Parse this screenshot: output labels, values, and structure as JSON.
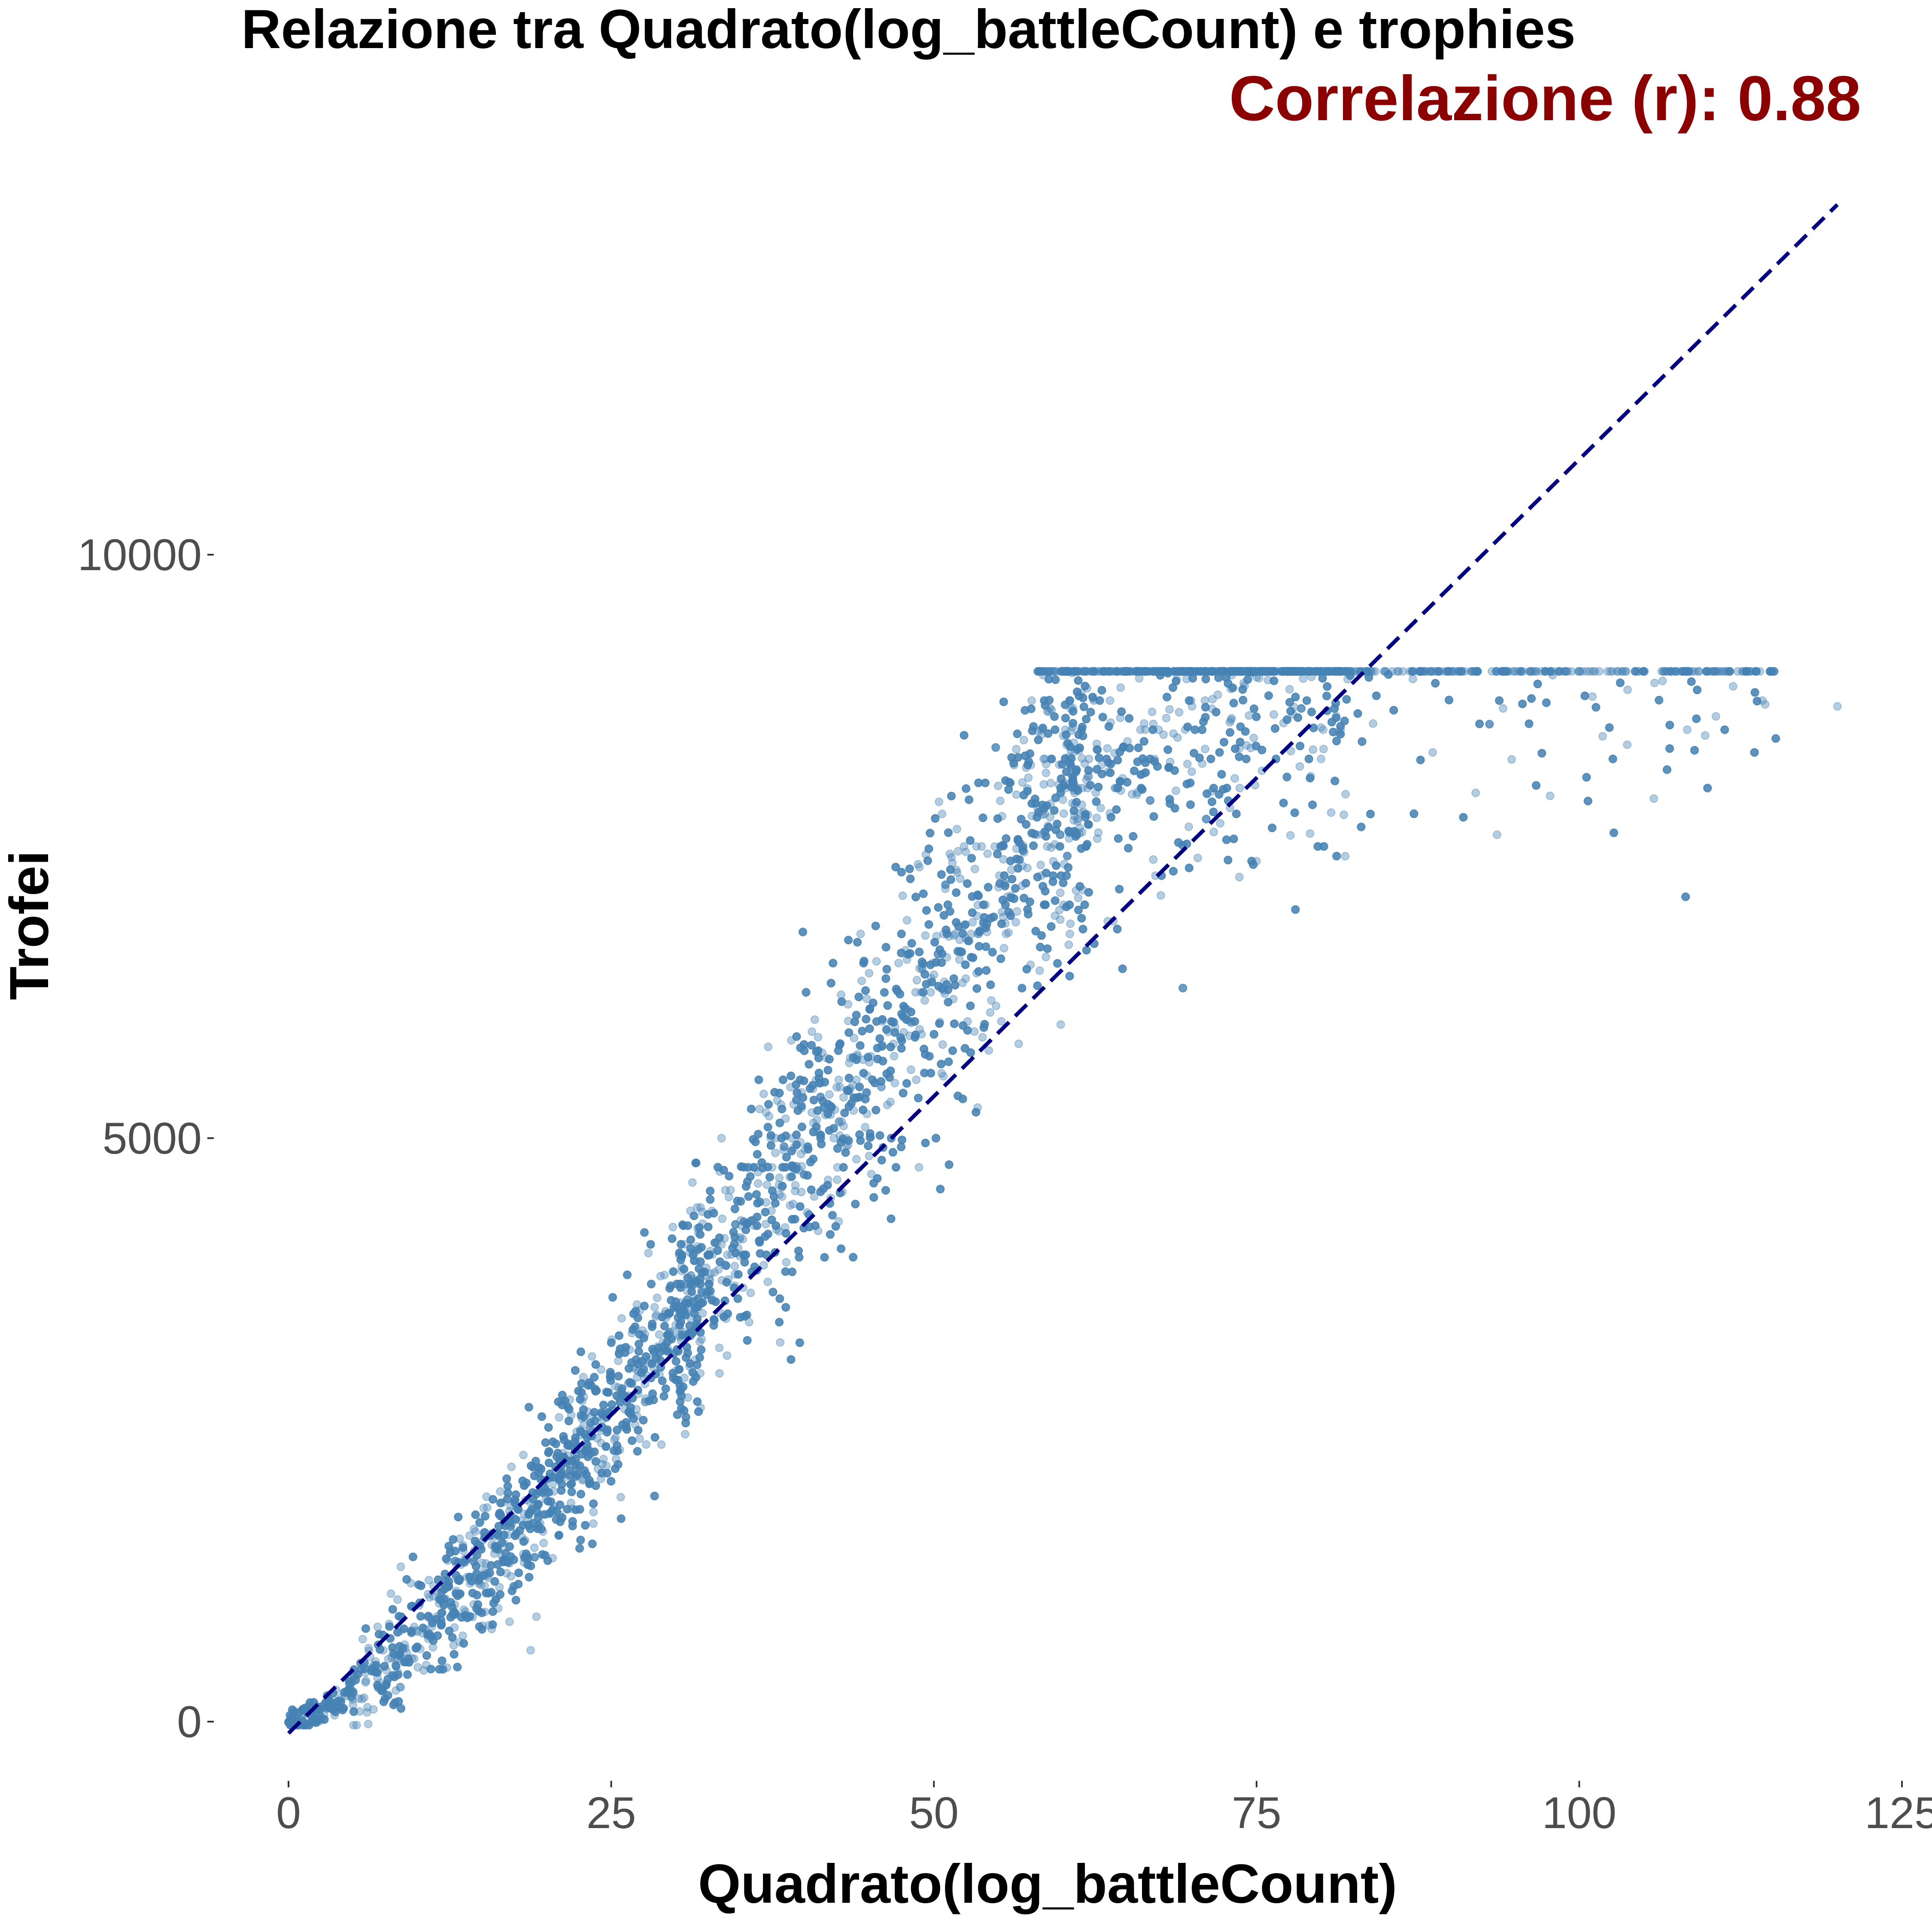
{
  "chart_data": {
    "type": "scatter",
    "title": "Relazione tra Quadrato(log_battleCount) e trophies",
    "annotation": "Correlazione (r): 0.88",
    "xlabel": "Quadrato(log_battleCount)",
    "ylabel": "Trofei",
    "xlim": [
      -3,
      125
    ],
    "ylim": [
      -700,
      14000
    ],
    "x_ticks": [
      0,
      25,
      50,
      75,
      100,
      125
    ],
    "x_tick_labels": [
      "0",
      "25",
      "50",
      "75",
      "100",
      "125"
    ],
    "y_ticks": [
      0,
      5000,
      10000
    ],
    "y_tick_labels": [
      "0",
      "5000",
      "10000"
    ],
    "grid": false,
    "trend_line": {
      "style": "dashed",
      "points": [
        [
          0,
          -100
        ],
        [
          120,
          13000
        ]
      ]
    },
    "series": [
      {
        "points_note": "approximately 10000 points, following trophies ≈ 150·x (cap at 9000, max x ≈ 120)",
        "x": [
          0,
          1,
          2,
          3,
          4,
          5,
          6,
          7,
          8,
          9,
          10,
          11,
          12,
          13,
          14,
          15,
          16,
          17,
          18,
          19,
          20,
          21,
          22,
          23,
          24,
          25,
          26,
          27,
          28,
          29,
          30,
          31,
          32,
          33,
          34,
          35,
          36,
          37,
          38,
          39,
          40,
          41,
          42,
          43,
          44,
          45,
          46,
          47,
          48,
          49,
          50,
          51,
          52,
          53,
          54,
          55,
          56,
          57,
          58,
          59,
          60,
          61,
          62,
          63,
          64,
          65,
          66,
          67,
          68,
          69,
          70,
          71,
          72,
          73,
          74,
          75,
          76,
          77,
          78,
          80,
          82,
          84,
          86,
          88,
          90,
          92,
          95,
          98,
          100,
          103,
          105,
          108,
          110,
          114,
          120
        ],
        "y": [
          0,
          20,
          60,
          110,
          180,
          260,
          350,
          450,
          550,
          660,
          770,
          880,
          1000,
          1120,
          1240,
          1360,
          1480,
          1600,
          1720,
          1850,
          1980,
          2110,
          2240,
          2380,
          2520,
          2660,
          2800,
          2950,
          3100,
          3250,
          3400,
          3550,
          3700,
          3850,
          4000,
          4150,
          4300,
          4450,
          4600,
          4750,
          4900,
          5050,
          5200,
          5350,
          5500,
          5650,
          5800,
          5950,
          6100,
          6250,
          6400,
          6550,
          6700,
          6850,
          7000,
          7150,
          7300,
          7450,
          7600,
          7750,
          7900,
          8000,
          8100,
          8200,
          8300,
          8400,
          8500,
          8550,
          8600,
          8650,
          8700,
          8750,
          8800,
          8850,
          8900,
          8950,
          9000,
          9000,
          9000,
          9000,
          9000,
          9000,
          9000,
          9000,
          9000,
          9000,
          9000,
          9000,
          9000,
          9000,
          9000,
          9000,
          9000,
          9000,
          8700
        ]
      }
    ],
    "colors": {
      "points": "#4682b4",
      "trend_line": "#000080",
      "annotation": "#8b0000"
    }
  }
}
